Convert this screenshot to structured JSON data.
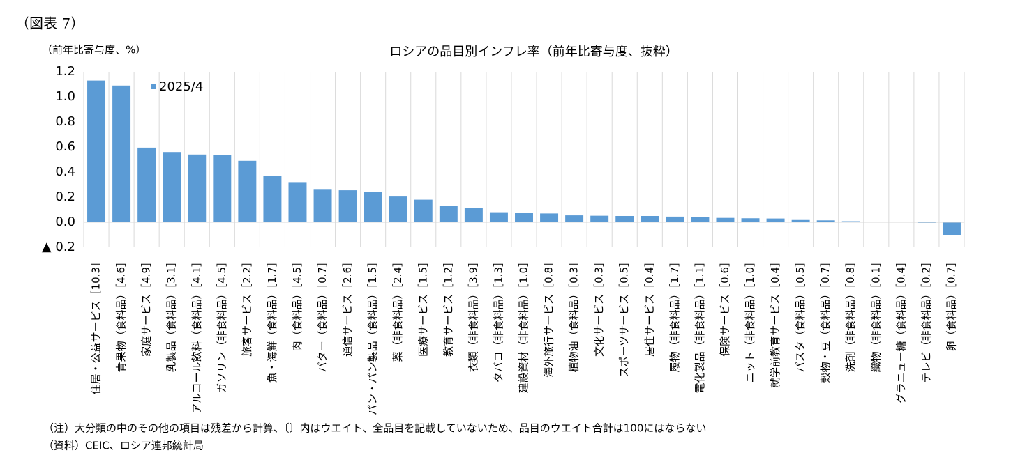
{
  "figure_label": "（図表 7）",
  "chart_data": {
    "type": "bar",
    "title": "ロシアの品目別インフレ率（前年比寄与度、抜粋）",
    "y_label": "（前年比寄与度、%）",
    "categories": [
      "住居・公益サービス［10.3］",
      "青果物（食料品）［4.6］",
      "家庭サービス［4.9］",
      "乳製品（食料品）［3.1］",
      "アルコール飲料（食料品）［4.1］",
      "ガソリン（非食料品）［4.5］",
      "旅客サービス［2.2］",
      "魚・海鮮（食料品）［1.7］",
      "肉（食料品）［4.5］",
      "バター（食料品）［0.7］",
      "通信サービス［2.6］",
      "パン・パン製品（食料品）［1.5］",
      "薬（非食料品）［2.4］",
      "医療サービス［1.5］",
      "教育サービス［1.2］",
      "衣類（非食料品）［3.9］",
      "タバコ（非食料品）［1.3］",
      "建設資材（非食料品）［1.0］",
      "海外旅行サービス［0.8］",
      "植物油（食料品）［0.3］",
      "文化サービス［0.3］",
      "スポーツサービス［0.5］",
      "居住サービス［0.4］",
      "履物（非食料品）［1.7］",
      "電化製品（非食料品）［1.1］",
      "保険サービス［0.6］",
      "ニット（非食料品）［1.0］",
      "就学前教育サービス［0.4］",
      "パスタ（食料品）［0.5］",
      "穀物・豆（食料品）［0.7］",
      "洗剤（非食料品）［0.8］",
      "織物（非食料品）［0.1］",
      "グラニュー糖（食料品）［0.4］",
      "テレビ（非食料品）［0.2］",
      "卵（食料品）［0.7］"
    ],
    "series": [
      {
        "name": "2025/4",
        "color": "#5b9bd5",
        "values": [
          1.13,
          1.09,
          0.595,
          0.56,
          0.54,
          0.535,
          0.49,
          0.37,
          0.32,
          0.265,
          0.255,
          0.24,
          0.205,
          0.18,
          0.13,
          0.115,
          0.08,
          0.075,
          0.07,
          0.055,
          0.052,
          0.05,
          0.05,
          0.045,
          0.04,
          0.035,
          0.032,
          0.03,
          0.018,
          0.015,
          0.008,
          0.002,
          0.001,
          -0.005,
          -0.1
        ]
      }
    ],
    "ylim": [
      -0.2,
      1.2
    ],
    "yticks": [
      1.2,
      {
        "value": 1,
        "label": "1.0"
      },
      0.8,
      0.6,
      0.4,
      0.2,
      {
        "value": 0,
        "label": "0.0"
      },
      {
        "value": -0.2,
        "label": "▲ 0.2"
      }
    ],
    "legend": "upper left",
    "grid": "x"
  },
  "notes": [
    "（注）大分類の中のその他の項目は残差から計算、〔〕内はウエイト、全品目を記載していないため、品目のウエイト合計は100にはならない",
    "（資料）CEIC、ロシア連邦統計局"
  ]
}
